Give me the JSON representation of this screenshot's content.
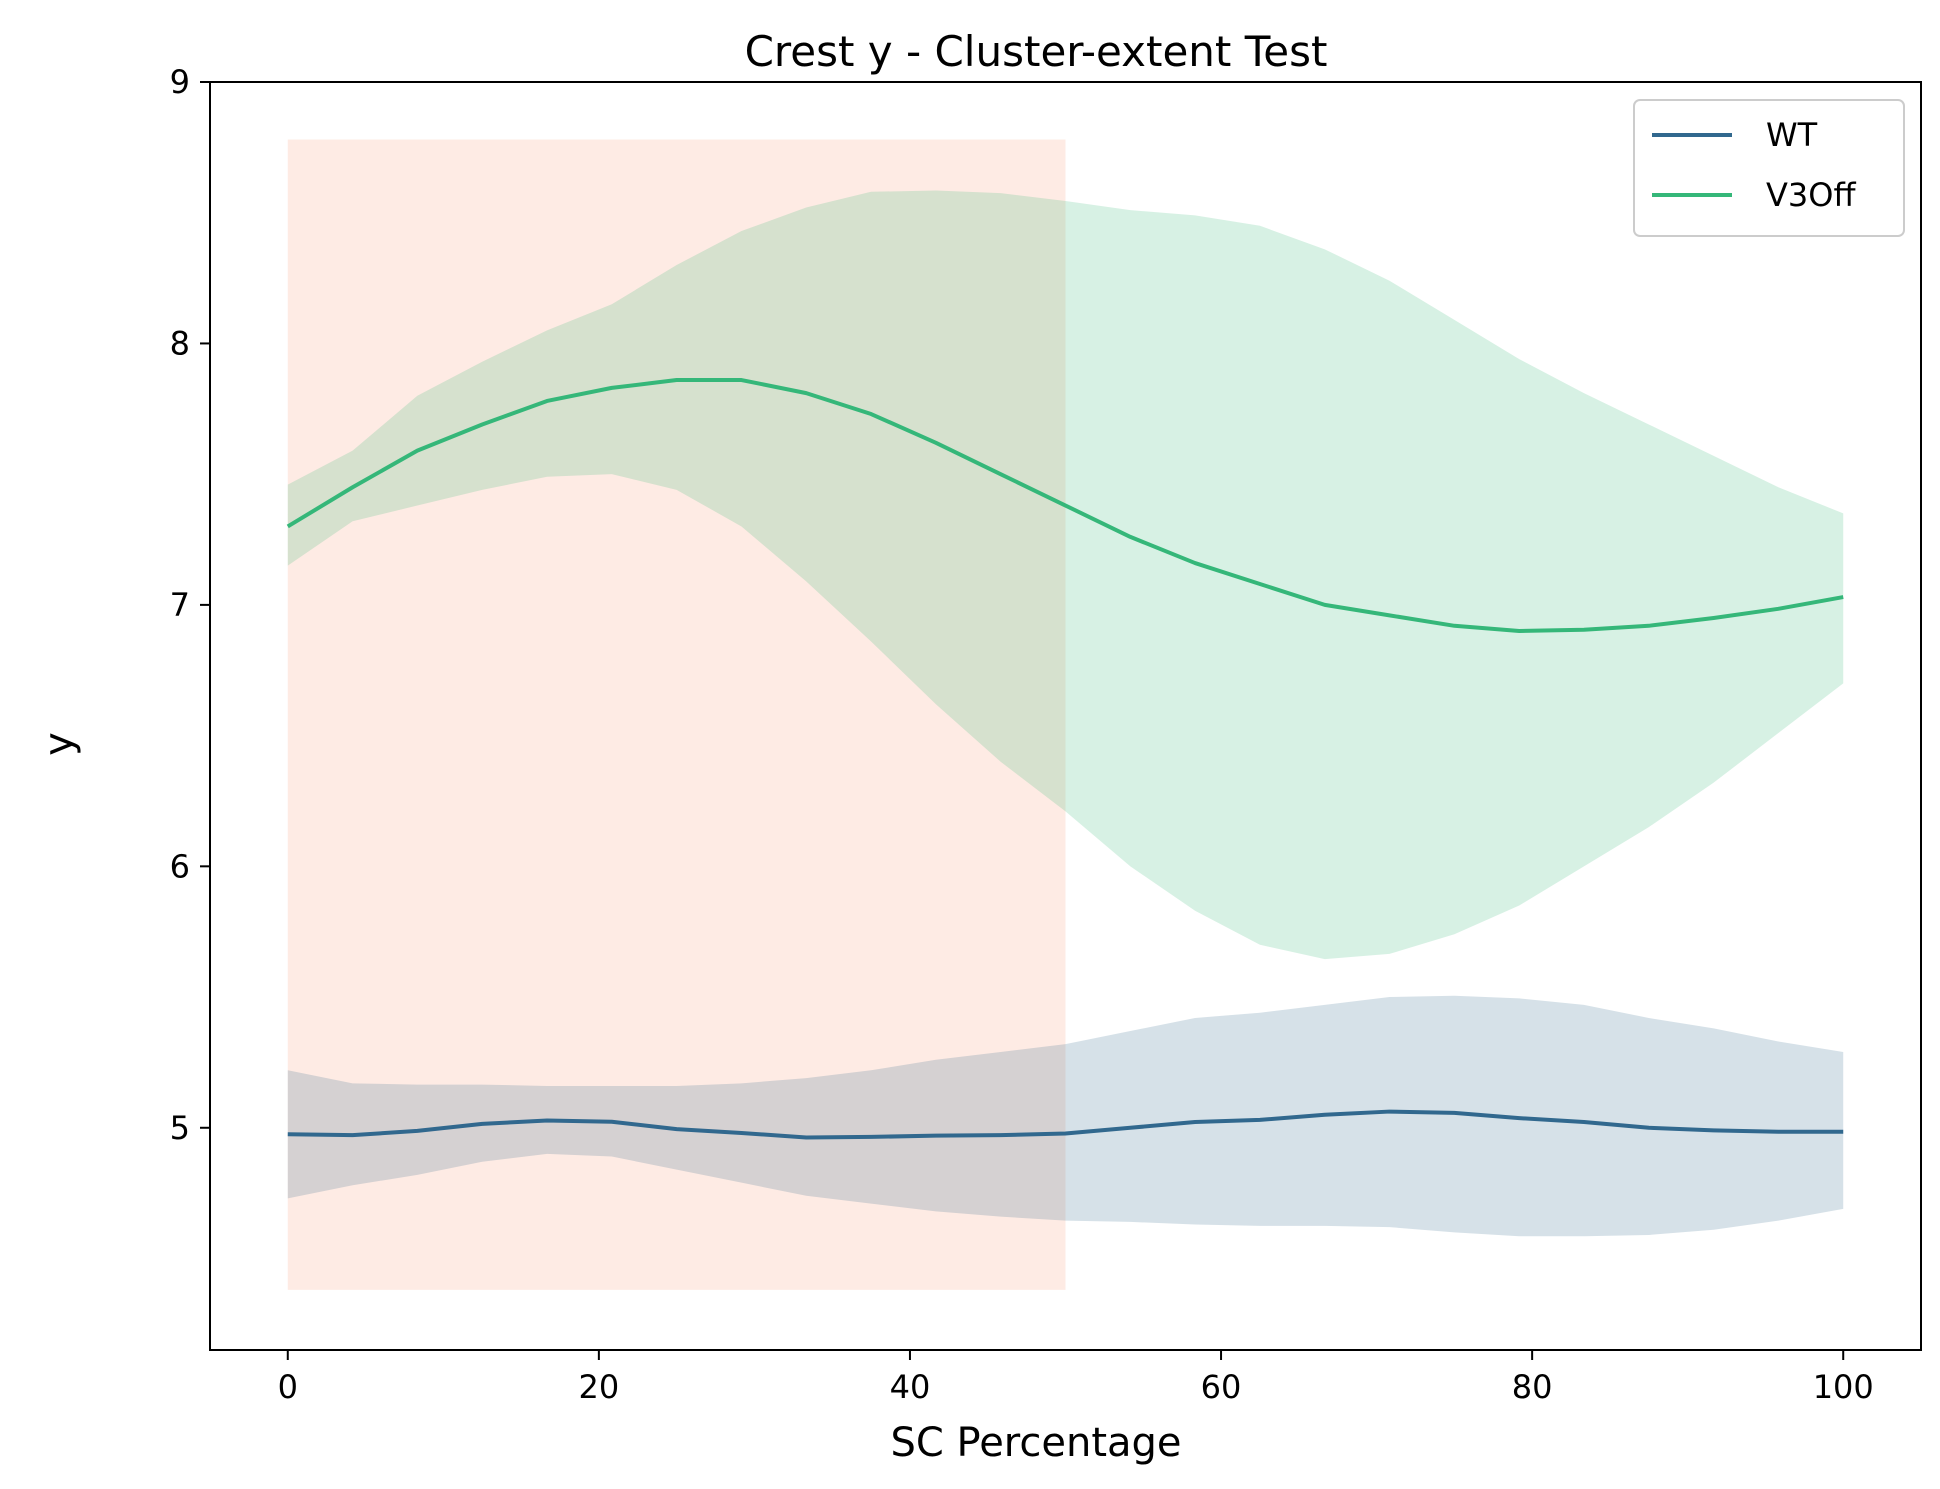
{
  "chart_data": {
    "type": "line",
    "title": "Crest y - Cluster-extent Test",
    "xlabel": "SC Percentage",
    "ylabel": "y",
    "xlim": [
      -5,
      105
    ],
    "ylim": [
      4.15,
      9.0
    ],
    "xticks": [
      0,
      20,
      40,
      60,
      80,
      100
    ],
    "yticks": [
      5,
      6,
      7,
      8,
      9
    ],
    "grid": false,
    "legend_position": "top-right",
    "highlight_region": {
      "x": [
        0,
        50
      ],
      "y": [
        4.38,
        8.78
      ],
      "color": "#fde0d5"
    },
    "x": [
      0,
      4.17,
      8.33,
      12.5,
      16.67,
      20.83,
      25,
      29.17,
      33.33,
      37.5,
      41.67,
      45.83,
      50,
      54.17,
      58.33,
      62.5,
      66.67,
      70.83,
      75,
      79.17,
      83.33,
      87.5,
      91.67,
      95.83,
      100
    ],
    "series": [
      {
        "name": "WT",
        "color": "#31688e",
        "values": [
          4.975,
          4.972,
          4.988,
          5.015,
          5.028,
          5.023,
          4.995,
          4.98,
          4.963,
          4.965,
          4.97,
          4.972,
          4.978,
          5.0,
          5.022,
          5.03,
          5.05,
          5.062,
          5.057,
          5.037,
          5.022,
          5.0,
          4.99,
          4.985,
          4.985
        ],
        "lower": [
          4.73,
          4.78,
          4.82,
          4.87,
          4.9,
          4.89,
          4.84,
          4.79,
          4.74,
          4.71,
          4.68,
          4.66,
          4.645,
          4.64,
          4.63,
          4.625,
          4.625,
          4.62,
          4.6,
          4.585,
          4.585,
          4.59,
          4.61,
          4.645,
          4.69
        ],
        "upper": [
          5.22,
          5.17,
          5.165,
          5.165,
          5.16,
          5.16,
          5.16,
          5.17,
          5.19,
          5.22,
          5.26,
          5.29,
          5.32,
          5.37,
          5.42,
          5.44,
          5.47,
          5.5,
          5.505,
          5.495,
          5.47,
          5.42,
          5.38,
          5.33,
          5.29
        ]
      },
      {
        "name": "V3Off",
        "color": "#35b779",
        "values": [
          7.3,
          7.45,
          7.59,
          7.69,
          7.78,
          7.83,
          7.86,
          7.86,
          7.81,
          7.73,
          7.62,
          7.5,
          7.38,
          7.26,
          7.16,
          7.08,
          7.0,
          6.96,
          6.92,
          6.9,
          6.905,
          6.92,
          6.95,
          6.985,
          7.03
        ],
        "lower": [
          7.15,
          7.32,
          7.38,
          7.44,
          7.49,
          7.5,
          7.44,
          7.3,
          7.09,
          6.86,
          6.62,
          6.4,
          6.21,
          6.0,
          5.83,
          5.7,
          5.645,
          5.665,
          5.74,
          5.85,
          6.0,
          6.15,
          6.32,
          6.51,
          6.7
        ],
        "upper": [
          7.46,
          7.59,
          7.8,
          7.93,
          8.05,
          8.15,
          8.3,
          8.43,
          8.52,
          8.58,
          8.585,
          8.575,
          8.545,
          8.51,
          8.49,
          8.45,
          8.36,
          8.24,
          8.09,
          7.94,
          7.81,
          7.69,
          7.57,
          7.45,
          7.35
        ]
      }
    ]
  }
}
